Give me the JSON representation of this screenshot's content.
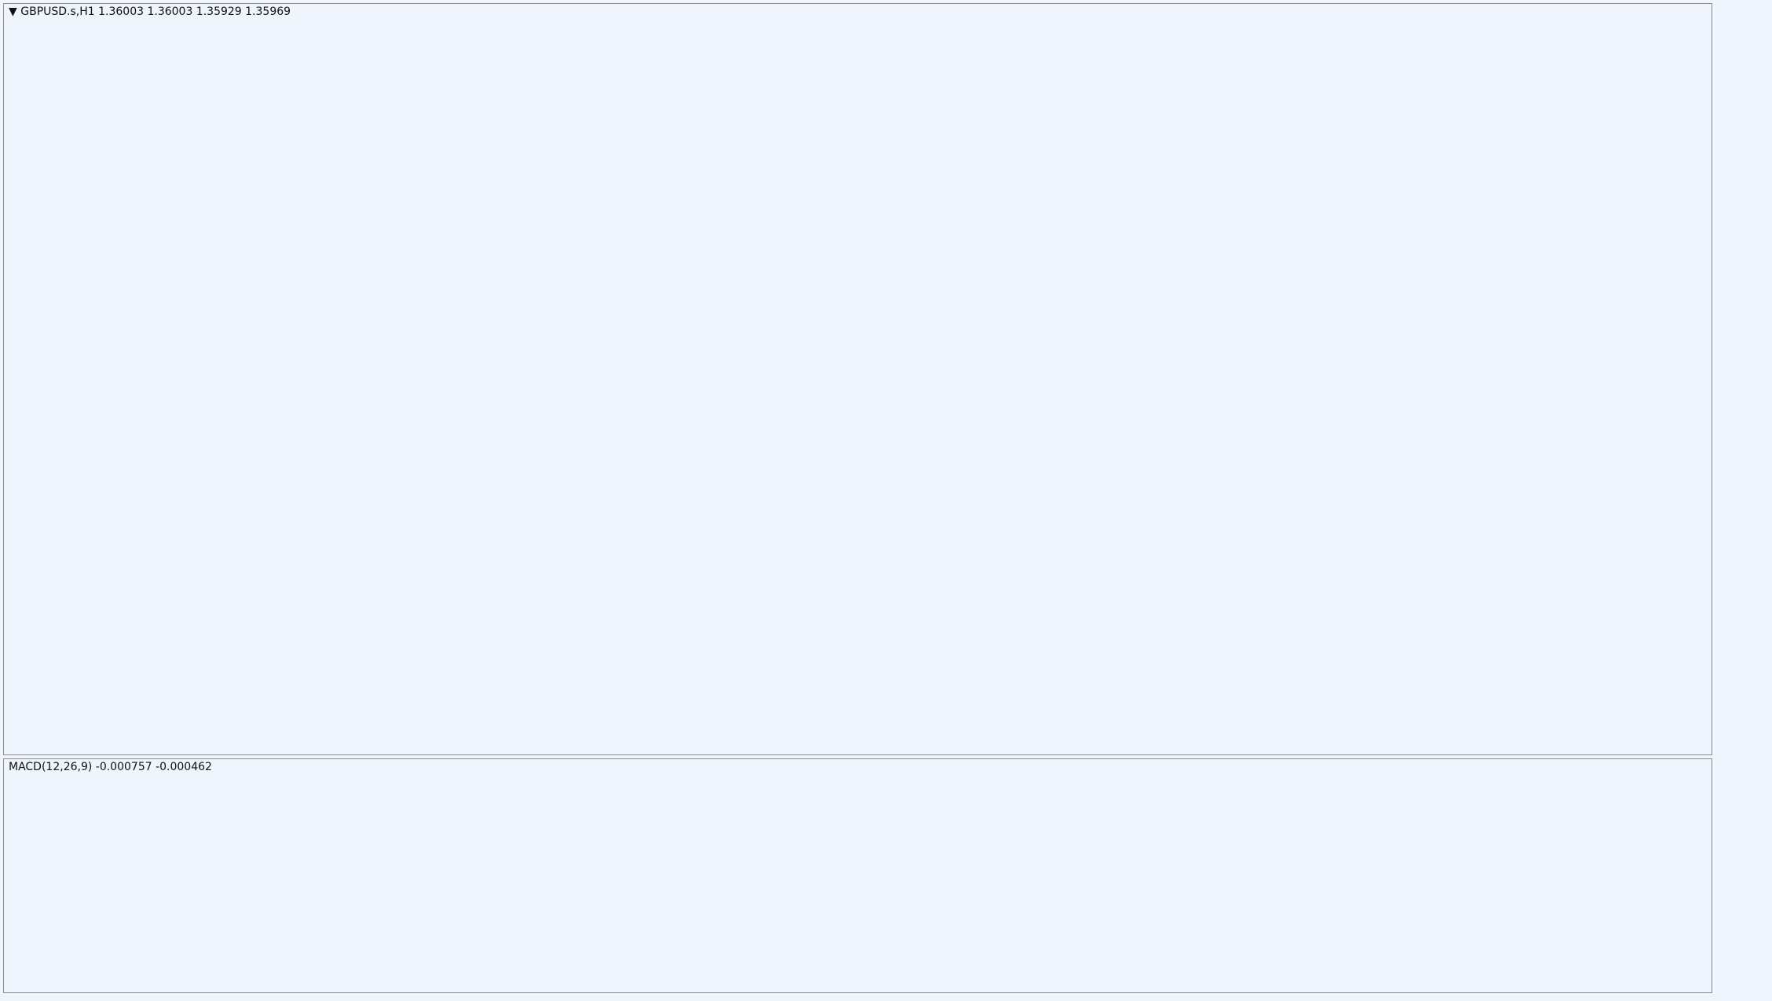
{
  "header": {
    "symbol_line": "GBPUSD.s,H1  1.36003 1.36003 1.35929 1.35969",
    "macd_line": "MACD(12,26,9) -0.000757 -0.000462"
  }
}
